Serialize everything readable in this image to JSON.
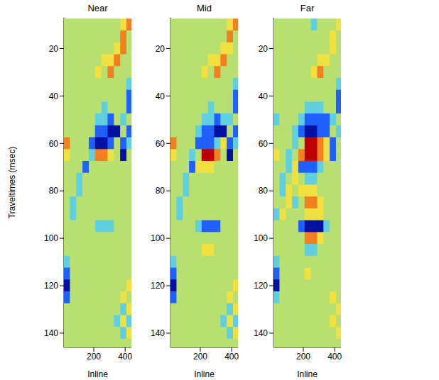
{
  "chart_data": [
    {
      "type": "heatmap",
      "title": "Near",
      "x_label": "Inline",
      "y_label": "Traveltimes (msec)",
      "xlim": [
        10,
        440
      ],
      "ylim": [
        7,
        146
      ],
      "xticks": [
        200,
        400
      ],
      "yticks": [
        20,
        40,
        60,
        80,
        100,
        120,
        140
      ],
      "clim": [
        -3,
        3
      ],
      "x": [
        30,
        70,
        110,
        150,
        190,
        230,
        270,
        310,
        350,
        390,
        430
      ],
      "y": [
        10,
        15,
        20,
        25,
        30,
        35,
        40,
        45,
        50,
        55,
        60,
        65,
        70,
        75,
        80,
        85,
        90,
        95,
        100,
        105,
        110,
        115,
        120,
        125,
        130,
        135,
        140,
        145
      ],
      "cells": [
        [
          0,
          0,
          0,
          0,
          0,
          0,
          0,
          0,
          0,
          1,
          2
        ],
        [
          0,
          0,
          0,
          0,
          0,
          0,
          0,
          0,
          0,
          2,
          0
        ],
        [
          0,
          0,
          0,
          0,
          0,
          0,
          0,
          0,
          1,
          2,
          0
        ],
        [
          0,
          0,
          0,
          0,
          0,
          0,
          1,
          1,
          2,
          0,
          0
        ],
        [
          0,
          0,
          0,
          0,
          0,
          1,
          0,
          2,
          0,
          0,
          0
        ],
        [
          0,
          0,
          0,
          0,
          0,
          0,
          0,
          0,
          0,
          0,
          -1
        ],
        [
          0,
          0,
          0,
          0,
          0,
          0,
          0,
          0,
          0,
          0,
          -2
        ],
        [
          0,
          0,
          0,
          0,
          0,
          0,
          -1,
          0,
          0,
          0,
          -2
        ],
        [
          0,
          0,
          0,
          0,
          0,
          -1,
          -1,
          -2,
          0,
          -1,
          0
        ],
        [
          0,
          0,
          0,
          0,
          0,
          -2,
          -2,
          -3,
          -3,
          0,
          -2
        ],
        [
          2,
          0,
          0,
          0,
          -2,
          -3,
          -3,
          -2,
          0,
          -2,
          -1
        ],
        [
          1,
          0,
          0,
          0,
          -1,
          2,
          2,
          1,
          0,
          -3,
          0
        ],
        [
          0,
          0,
          0,
          -2,
          0,
          0,
          0,
          0,
          0,
          0,
          0
        ],
        [
          0,
          0,
          -1,
          0,
          0,
          0,
          0,
          0,
          0,
          0,
          0
        ],
        [
          0,
          0,
          -1,
          0,
          0,
          0,
          0,
          0,
          0,
          0,
          0
        ],
        [
          0,
          -1,
          0,
          0,
          0,
          0,
          0,
          0,
          0,
          0,
          0
        ],
        [
          0,
          -1,
          0,
          0,
          0,
          0,
          0,
          0,
          0,
          0,
          0
        ],
        [
          0,
          0,
          0,
          0,
          0,
          -1,
          -1,
          -1,
          0,
          0,
          0
        ],
        [
          0,
          0,
          0,
          0,
          0,
          0,
          0,
          0,
          0,
          0,
          0
        ],
        [
          0,
          0,
          0,
          0,
          0,
          0,
          0,
          0,
          0,
          0,
          0
        ],
        [
          -1,
          0,
          0,
          0,
          0,
          0,
          0,
          0,
          0,
          0,
          0
        ],
        [
          -2,
          0,
          0,
          0,
          0,
          0,
          0,
          0,
          0,
          0,
          0
        ],
        [
          -3,
          0,
          0,
          0,
          0,
          0,
          0,
          0,
          0,
          0,
          1
        ],
        [
          -2,
          0,
          0,
          0,
          0,
          0,
          0,
          0,
          0,
          1,
          0
        ],
        [
          0,
          0,
          0,
          0,
          0,
          0,
          0,
          0,
          0,
          -1,
          1
        ],
        [
          0,
          0,
          0,
          0,
          0,
          0,
          0,
          0,
          -1,
          1,
          -1
        ],
        [
          0,
          0,
          0,
          0,
          0,
          0,
          0,
          0,
          0,
          -1,
          1
        ],
        [
          0,
          0,
          0,
          0,
          0,
          0,
          0,
          0,
          0,
          0,
          0
        ]
      ]
    },
    {
      "type": "heatmap",
      "title": "Mid",
      "x_label": "Inline",
      "xlim": [
        10,
        440
      ],
      "ylim": [
        7,
        146
      ],
      "xticks": [
        200,
        400
      ],
      "yticks": [
        20,
        40,
        60,
        80,
        100,
        120,
        140
      ],
      "clim": [
        -3,
        3
      ],
      "x": [
        30,
        70,
        110,
        150,
        190,
        230,
        270,
        310,
        350,
        390,
        430
      ],
      "y": [
        10,
        15,
        20,
        25,
        30,
        35,
        40,
        45,
        50,
        55,
        60,
        65,
        70,
        75,
        80,
        85,
        90,
        95,
        100,
        105,
        110,
        115,
        120,
        125,
        130,
        135,
        140,
        145
      ],
      "cells": [
        [
          0,
          0,
          0,
          0,
          0,
          0,
          0,
          0,
          0,
          1,
          2
        ],
        [
          0,
          0,
          0,
          0,
          0,
          0,
          0,
          0,
          0,
          2,
          0
        ],
        [
          0,
          0,
          0,
          0,
          0,
          0,
          0,
          0,
          1,
          1,
          0
        ],
        [
          0,
          0,
          0,
          0,
          0,
          0,
          1,
          1,
          2,
          0,
          0
        ],
        [
          0,
          0,
          0,
          0,
          0,
          1,
          0,
          2,
          0,
          0,
          0
        ],
        [
          0,
          0,
          0,
          0,
          0,
          0,
          0,
          0,
          0,
          0,
          -1
        ],
        [
          0,
          0,
          0,
          0,
          0,
          0,
          0,
          0,
          0,
          0,
          -2
        ],
        [
          0,
          0,
          0,
          0,
          0,
          0,
          -1,
          0,
          0,
          0,
          -2
        ],
        [
          0,
          0,
          0,
          0,
          0,
          -1,
          -1,
          -2,
          -1,
          -1,
          0
        ],
        [
          0,
          0,
          0,
          0,
          -1,
          -2,
          -2,
          -3,
          -3,
          0,
          -2
        ],
        [
          2,
          0,
          0,
          0,
          -2,
          -2,
          -2,
          -1,
          1,
          -2,
          -1
        ],
        [
          1,
          0,
          0,
          -1,
          0,
          3,
          3,
          2,
          0,
          -3,
          0
        ],
        [
          0,
          0,
          0,
          -2,
          1,
          1,
          1,
          0,
          0,
          0,
          0
        ],
        [
          0,
          0,
          -1,
          0,
          0,
          0,
          0,
          0,
          0,
          0,
          0
        ],
        [
          0,
          0,
          -1,
          0,
          0,
          0,
          0,
          0,
          0,
          0,
          0
        ],
        [
          0,
          -1,
          0,
          0,
          0,
          0,
          0,
          0,
          0,
          0,
          0
        ],
        [
          0,
          -1,
          0,
          0,
          0,
          0,
          0,
          0,
          0,
          0,
          0
        ],
        [
          0,
          0,
          0,
          0,
          -1,
          -2,
          -2,
          -2,
          0,
          0,
          0
        ],
        [
          0,
          0,
          0,
          0,
          0,
          0,
          0,
          0,
          0,
          0,
          0
        ],
        [
          0,
          0,
          0,
          0,
          0,
          1,
          1,
          0,
          0,
          0,
          0
        ],
        [
          -1,
          0,
          0,
          0,
          0,
          0,
          0,
          0,
          0,
          0,
          0
        ],
        [
          -2,
          0,
          0,
          0,
          0,
          0,
          0,
          0,
          0,
          0,
          0
        ],
        [
          -3,
          0,
          0,
          0,
          0,
          0,
          0,
          0,
          0,
          0,
          1
        ],
        [
          -2,
          0,
          0,
          0,
          0,
          0,
          0,
          0,
          0,
          1,
          0
        ],
        [
          0,
          0,
          0,
          0,
          0,
          0,
          0,
          0,
          0,
          -1,
          1
        ],
        [
          0,
          0,
          0,
          0,
          0,
          0,
          0,
          0,
          -1,
          1,
          -1
        ],
        [
          0,
          0,
          0,
          0,
          0,
          0,
          0,
          0,
          0,
          -1,
          1
        ],
        [
          0,
          0,
          0,
          0,
          0,
          0,
          0,
          0,
          0,
          0,
          0
        ]
      ]
    },
    {
      "type": "heatmap",
      "title": "Far",
      "x_label": "Inline",
      "xlim": [
        10,
        440
      ],
      "ylim": [
        7,
        146
      ],
      "xticks": [
        200,
        400
      ],
      "yticks": [
        20,
        40,
        60,
        80,
        100,
        120,
        140
      ],
      "clim": [
        -3,
        3
      ],
      "x": [
        30,
        70,
        110,
        150,
        190,
        230,
        270,
        310,
        350,
        390,
        430
      ],
      "y": [
        10,
        15,
        20,
        25,
        30,
        35,
        40,
        45,
        50,
        55,
        60,
        65,
        70,
        75,
        80,
        85,
        90,
        95,
        100,
        105,
        110,
        115,
        120,
        125,
        130,
        135,
        140,
        145
      ],
      "cells": [
        [
          0,
          0,
          0,
          0,
          0,
          0,
          -1,
          0,
          0,
          0,
          1
        ],
        [
          0,
          0,
          0,
          0,
          0,
          0,
          0,
          0,
          0,
          1,
          0
        ],
        [
          0,
          0,
          0,
          0,
          0,
          0,
          0,
          0,
          0,
          1,
          0
        ],
        [
          0,
          0,
          0,
          0,
          0,
          0,
          0,
          1,
          1,
          0,
          0
        ],
        [
          0,
          0,
          0,
          0,
          0,
          0,
          1,
          2,
          0,
          0,
          0
        ],
        [
          0,
          0,
          0,
          0,
          0,
          0,
          0,
          0,
          0,
          0,
          -1
        ],
        [
          0,
          0,
          0,
          0,
          0,
          0,
          0,
          0,
          0,
          0,
          -2
        ],
        [
          0,
          0,
          0,
          0,
          0,
          -1,
          -1,
          -1,
          0,
          0,
          -2
        ],
        [
          -1,
          0,
          0,
          0,
          -1,
          -2,
          -2,
          -2,
          -2,
          -1,
          0
        ],
        [
          0,
          0,
          0,
          -1,
          -2,
          -3,
          -3,
          -2,
          -2,
          0,
          -1
        ],
        [
          0,
          0,
          0,
          -1,
          0,
          3,
          3,
          2,
          1,
          -2,
          0
        ],
        [
          1,
          0,
          -1,
          0,
          2,
          3,
          3,
          2,
          1,
          -2,
          0
        ],
        [
          0,
          0,
          -1,
          1,
          -2,
          -2,
          -2,
          -1,
          0,
          0,
          0
        ],
        [
          0,
          -1,
          0,
          1,
          0,
          -1,
          -1,
          0,
          0,
          0,
          0
        ],
        [
          0,
          -1,
          1,
          0,
          1,
          1,
          1,
          0,
          0,
          0,
          0
        ],
        [
          0,
          0,
          1,
          -1,
          0,
          2,
          2,
          1,
          0,
          0,
          0
        ],
        [
          -1,
          1,
          0,
          0,
          0,
          1,
          1,
          1,
          0,
          0,
          0
        ],
        [
          0,
          0,
          0,
          0,
          -2,
          -3,
          -3,
          -3,
          -1,
          0,
          0
        ],
        [
          0,
          0,
          0,
          0,
          0,
          2,
          2,
          1,
          0,
          0,
          0
        ],
        [
          0,
          0,
          0,
          0,
          0,
          -1,
          -1,
          0,
          0,
          0,
          0
        ],
        [
          -1,
          0,
          0,
          0,
          0,
          0,
          0,
          0,
          0,
          0,
          0
        ],
        [
          -2,
          0,
          0,
          0,
          0,
          1,
          0,
          0,
          0,
          0,
          0
        ],
        [
          -3,
          0,
          0,
          0,
          0,
          0,
          0,
          0,
          0,
          0,
          0
        ],
        [
          -1,
          0,
          0,
          0,
          0,
          0,
          0,
          0,
          0,
          1,
          0
        ],
        [
          0,
          0,
          0,
          0,
          0,
          0,
          0,
          0,
          0,
          0,
          1
        ],
        [
          0,
          0,
          0,
          0,
          0,
          0,
          0,
          0,
          0,
          1,
          0
        ],
        [
          0,
          0,
          0,
          0,
          0,
          0,
          0,
          0,
          0,
          0,
          1
        ],
        [
          0,
          0,
          0,
          0,
          0,
          0,
          0,
          0,
          0,
          0,
          0
        ]
      ]
    }
  ]
}
